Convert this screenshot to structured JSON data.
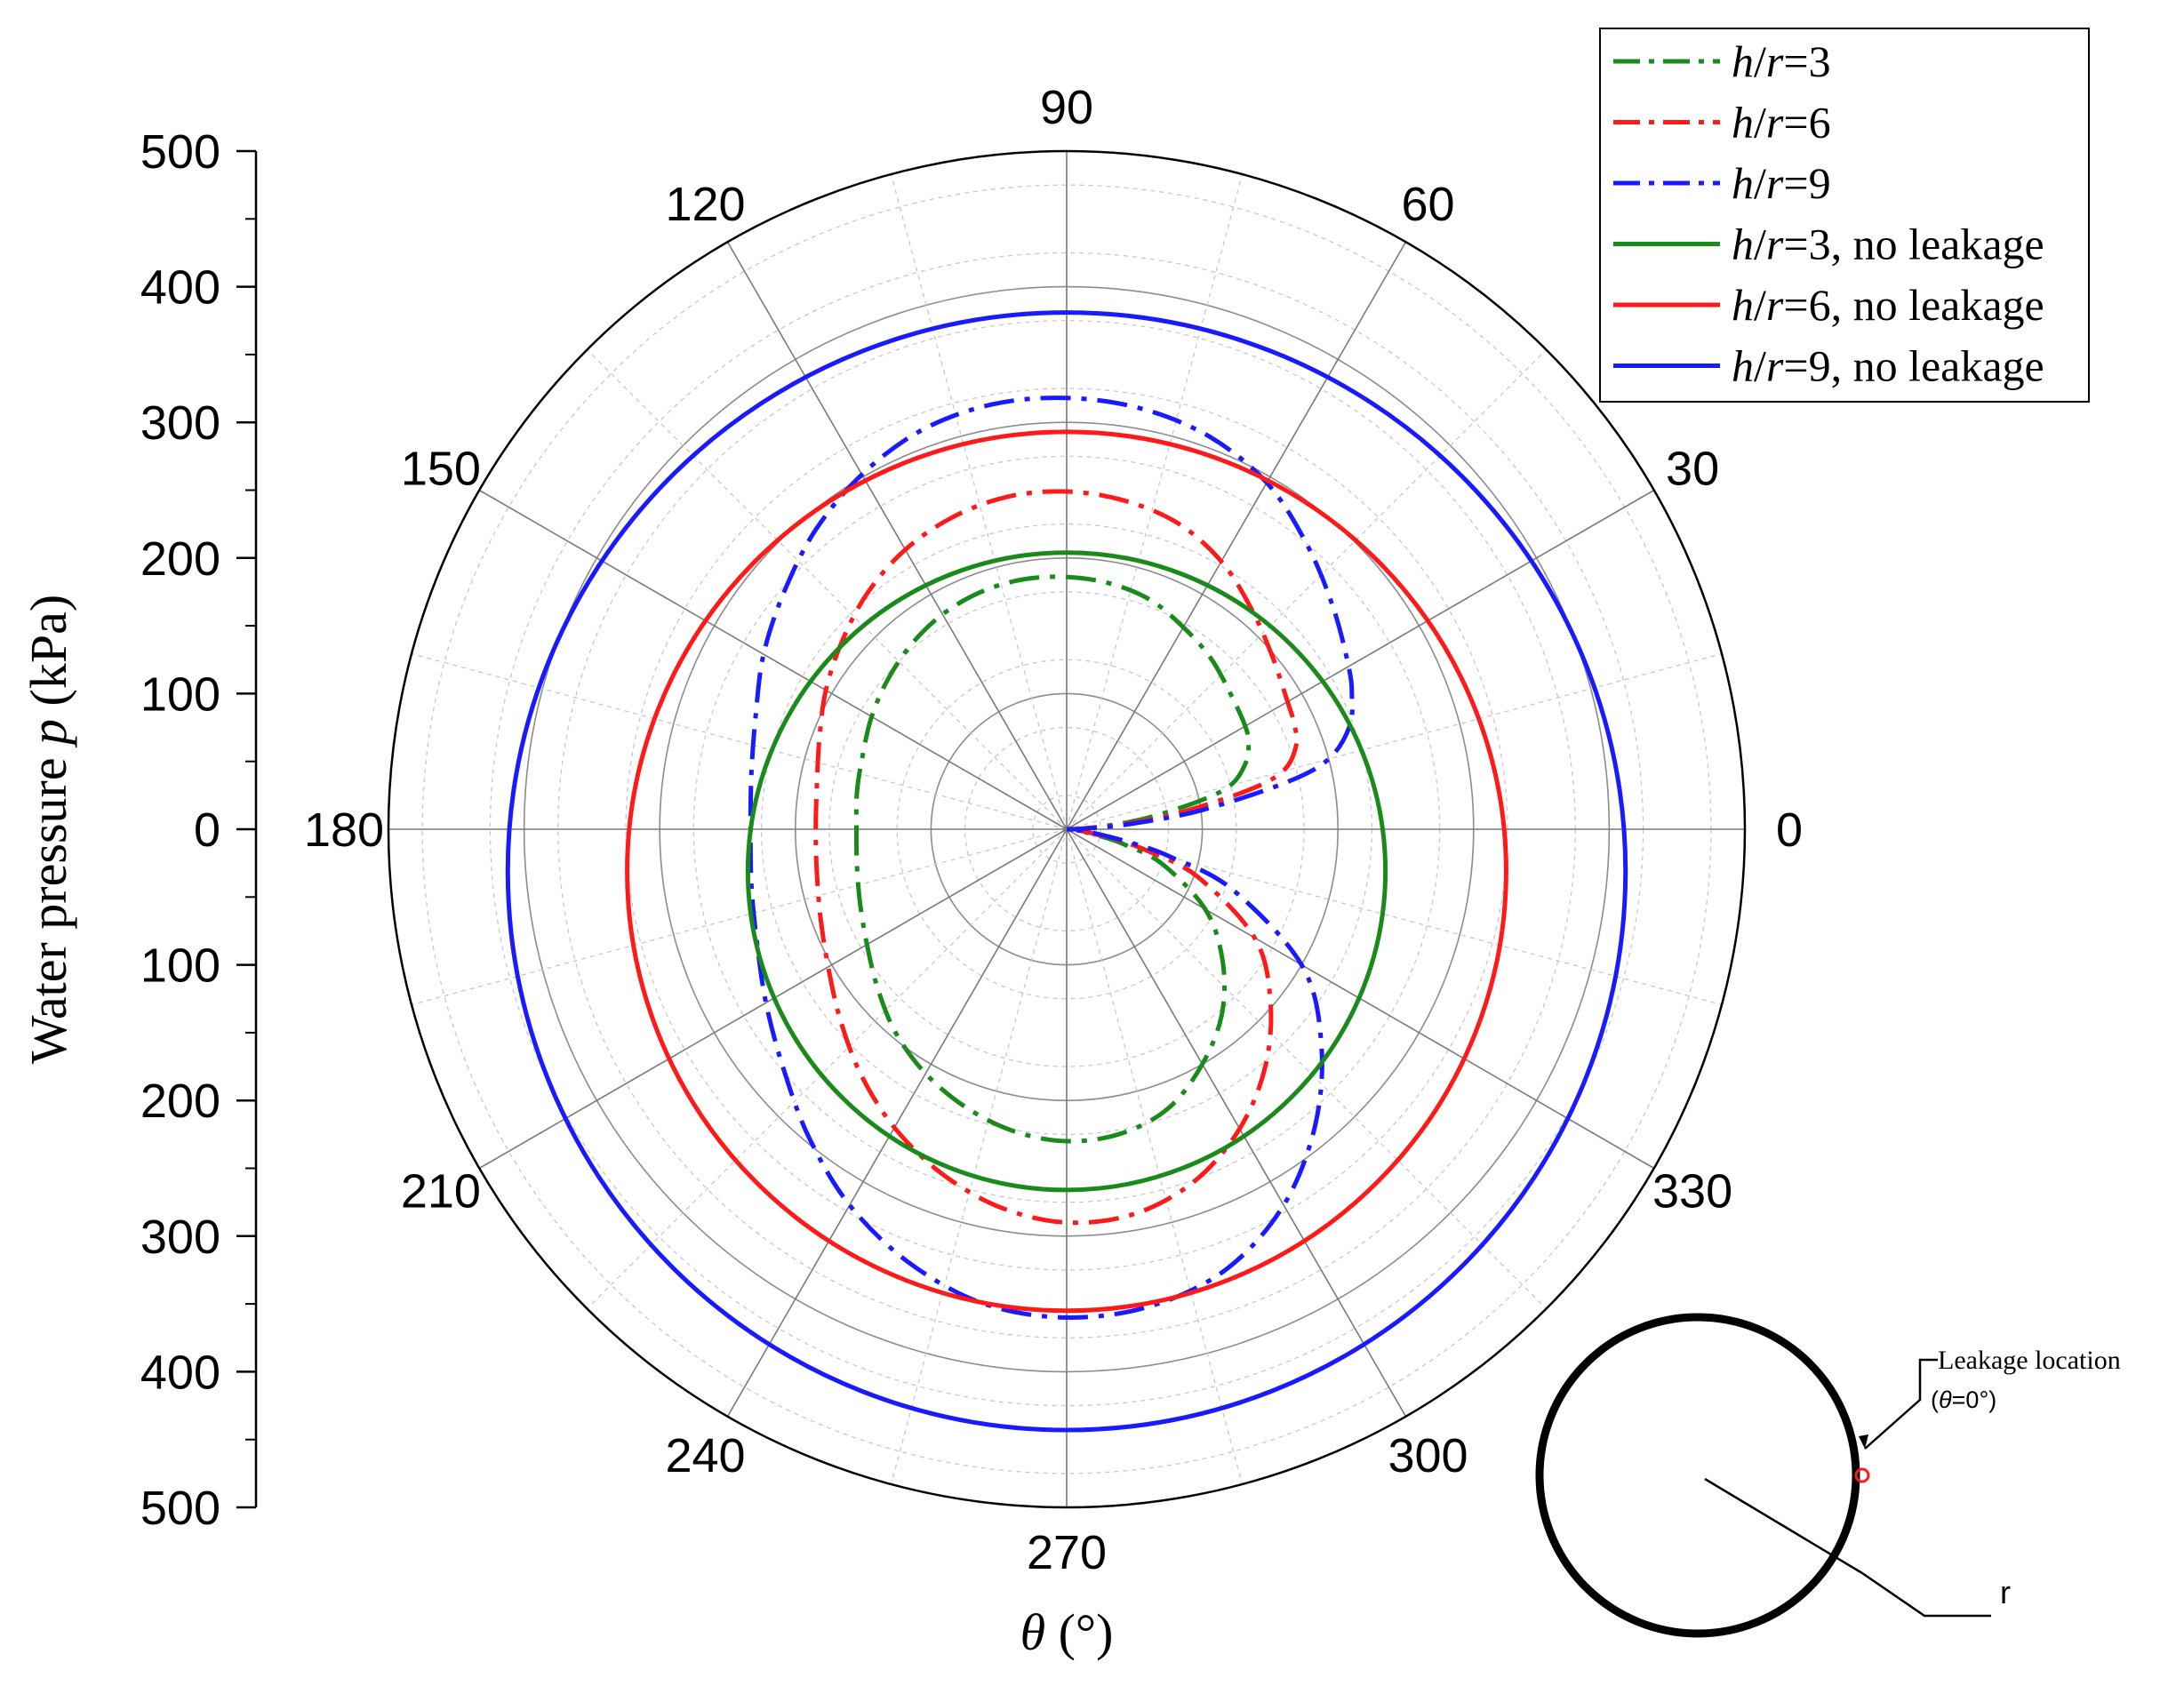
{
  "chart_data": {
    "type": "line",
    "coordinate_system": "polar",
    "xlabel_symbol": "θ",
    "xlabel_unit": " (°)",
    "ylabel_text": "Water pressure ",
    "ylabel_symbol": "p",
    "ylabel_unit": " (kPa)",
    "rlim": [
      0,
      500
    ],
    "radial_ticks": [
      500,
      400,
      300,
      200,
      100,
      0,
      100,
      200,
      300,
      400,
      500
    ],
    "angle_ticks": [
      "0",
      "30",
      "60",
      "90",
      "120",
      "150",
      "180",
      "210",
      "240",
      "270",
      "300",
      "330"
    ],
    "angle_tick_values": [
      0,
      30,
      60,
      90,
      120,
      150,
      180,
      210,
      240,
      270,
      300,
      330
    ],
    "grid": true,
    "legend_position": "top-right",
    "theta": [
      0,
      2,
      5,
      8,
      12,
      15,
      20,
      25,
      30,
      40,
      50,
      60,
      70,
      80,
      90,
      100,
      110,
      120,
      130,
      140,
      150,
      160,
      170,
      180,
      190,
      200,
      210,
      220,
      230,
      240,
      250,
      260,
      270,
      280,
      290,
      300,
      310,
      320,
      330,
      340,
      345,
      348,
      352,
      355,
      358,
      360
    ],
    "series": [
      {
        "name_symbol": "h",
        "name_mid": "/",
        "name_symbol2": "r",
        "name_suffix": "=3",
        "color": "#1a8a1a",
        "dash": "dashdot",
        "values": [
          0,
          10,
          30,
          60,
          100,
          125,
          140,
          148,
          152,
          157,
          165,
          172,
          180,
          184,
          186,
          187,
          186,
          183,
          178,
          172,
          166,
          160,
          157,
          155,
          157,
          162,
          170,
          182,
          196,
          208,
          218,
          226,
          230,
          228,
          219,
          200,
          178,
          150,
          118,
          75,
          45,
          28,
          12,
          5,
          1,
          0
        ]
      },
      {
        "name_symbol": "h",
        "name_mid": "/",
        "name_symbol2": "r",
        "name_suffix": "=6",
        "color": "#ff1a1a",
        "dash": "dashdot",
        "values": [
          0,
          10,
          40,
          80,
          135,
          165,
          180,
          185,
          188,
          198,
          212,
          228,
          240,
          246,
          249,
          249,
          245,
          238,
          228,
          216,
          205,
          194,
          187,
          185,
          187,
          193,
          203,
          218,
          236,
          254,
          270,
          283,
          290,
          288,
          276,
          255,
          228,
          196,
          160,
          103,
          62,
          38,
          15,
          6,
          1,
          0
        ]
      },
      {
        "name_symbol": "h",
        "name_mid": "/",
        "name_symbol2": "r",
        "name_suffix": "=9",
        "color": "#1a1aff",
        "dash": "dashdot",
        "values": [
          0,
          15,
          50,
          100,
          165,
          200,
          222,
          232,
          240,
          256,
          275,
          295,
          308,
          315,
          318,
          318,
          313,
          302,
          288,
          272,
          258,
          244,
          236,
          233,
          236,
          243,
          256,
          273,
          296,
          320,
          340,
          355,
          360,
          357,
          345,
          320,
          285,
          245,
          200,
          130,
          80,
          50,
          20,
          8,
          2,
          0
        ]
      },
      {
        "name_symbol": "h",
        "name_mid": "/",
        "name_symbol2": "r",
        "name_suffix": "=3, no leakage",
        "color": "#1a8a1a",
        "dash": "solid",
        "circle_offset_y": -31,
        "circle_radius": 235
      },
      {
        "name_symbol": "h",
        "name_mid": "/",
        "name_symbol2": "r",
        "name_suffix": "=6, no leakage",
        "color": "#ff1a1a",
        "dash": "solid",
        "circle_offset_y": -31,
        "circle_radius": 324
      },
      {
        "name_symbol": "h",
        "name_mid": "/",
        "name_symbol2": "r",
        "name_suffix": "=9, no leakage",
        "color": "#1a1aff",
        "dash": "solid",
        "circle_offset_y": -31,
        "circle_radius": 412
      }
    ]
  },
  "inset": {
    "leakage_label": "Leakage location",
    "theta_eq_open": "(",
    "theta_symbol": "θ",
    "theta_eq_value": "=0°)",
    "radius_label": "r",
    "marker_color": "#ff1a1a"
  }
}
